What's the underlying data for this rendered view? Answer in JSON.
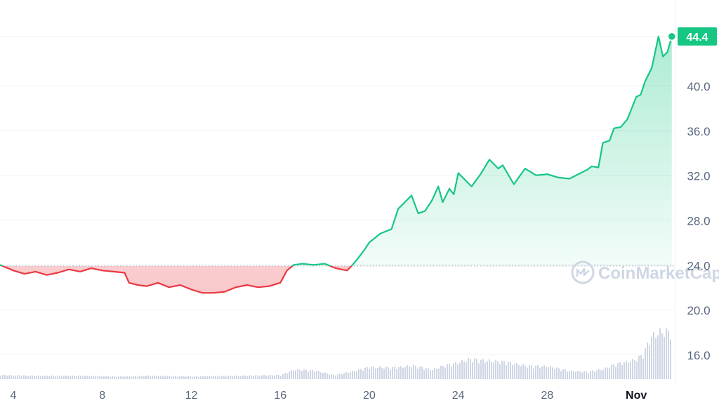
{
  "chart_data": {
    "type": "line",
    "title": "",
    "xlabel": "",
    "ylabel": "",
    "x_tick_labels": [
      "4",
      "8",
      "12",
      "16",
      "20",
      "24",
      "28",
      "Nov"
    ],
    "x_tick_days": [
      4,
      8,
      12,
      16,
      20,
      24,
      28,
      32
    ],
    "x_range": [
      3.4,
      33.7
    ],
    "ylim": [
      13.8,
      46.4
    ],
    "y_tick_labels": [
      "16.0",
      "20.0",
      "24.0",
      "28.0",
      "32.0",
      "36.0",
      "40.0"
    ],
    "y_ticks": [
      16,
      20,
      24,
      28,
      32,
      36,
      40
    ],
    "baseline": 23.9,
    "current_value": 44.4,
    "current_label": "44.4",
    "watermark": "CoinMarketCap",
    "grid": "horizontal",
    "colors": {
      "up": "#16c784",
      "down": "#ea3943",
      "up_fill": "#16c784",
      "down_fill": "#ea3943",
      "volume": "#cfd6e4",
      "grid": "#eff2f5",
      "axis_text": "#58667e",
      "price_tag_bg": "#16c784",
      "price_tag_text": "#ffffff",
      "watermark": "#cfd6e4"
    },
    "series": [
      {
        "x": [
          3.4,
          4.0,
          4.5,
          5.0,
          5.5,
          6.0,
          6.5,
          7.0,
          7.5,
          8.0,
          8.5,
          9.0,
          9.2,
          9.6,
          10.0,
          10.5,
          11.0,
          11.5,
          12.0,
          12.5,
          13.0,
          13.5,
          14.0,
          14.5,
          15.0,
          15.5,
          16.0,
          16.3,
          16.6,
          17.0,
          17.5,
          18.0,
          18.5,
          19.0,
          19.2,
          19.5,
          19.8,
          20.0,
          20.5,
          21.0,
          21.3,
          21.6,
          21.9,
          22.2,
          22.5,
          22.8,
          23.1,
          23.3,
          23.6,
          23.8,
          24.0,
          24.3,
          24.6,
          25.0,
          25.4,
          25.8,
          26.0,
          26.5,
          27.0,
          27.5,
          28.0,
          28.5,
          29.0,
          29.5,
          29.8,
          30.0,
          30.3,
          30.5,
          30.8,
          31.0,
          31.3,
          31.6,
          31.8,
          32.0,
          32.2,
          32.4,
          32.7,
          33.0,
          33.2,
          33.4,
          33.6
        ],
        "y": [
          24.0,
          23.5,
          23.2,
          23.4,
          23.1,
          23.3,
          23.6,
          23.4,
          23.7,
          23.5,
          23.4,
          23.3,
          22.4,
          22.2,
          22.1,
          22.4,
          22.0,
          22.2,
          21.8,
          21.5,
          21.5,
          21.6,
          22.0,
          22.2,
          22.0,
          22.1,
          22.4,
          23.5,
          24.0,
          24.1,
          24.0,
          24.1,
          23.7,
          23.5,
          23.9,
          24.6,
          25.4,
          26.0,
          26.8,
          27.2,
          29.0,
          29.6,
          30.2,
          28.6,
          28.8,
          29.7,
          31.0,
          29.6,
          30.8,
          30.3,
          32.2,
          31.6,
          31.0,
          32.1,
          33.4,
          32.6,
          32.9,
          31.2,
          32.6,
          32.0,
          32.1,
          31.8,
          31.7,
          32.2,
          32.5,
          32.8,
          32.7,
          34.9,
          35.1,
          36.2,
          36.3,
          37.0,
          38.0,
          39.0,
          39.2,
          40.4,
          41.6,
          44.4,
          42.6,
          43.0,
          44.4
        ]
      }
    ],
    "volume": {
      "x": [
        3.4,
        5.0,
        7.0,
        9.0,
        10.0,
        12.0,
        14.0,
        16.0,
        16.6,
        17.5,
        18.4,
        19.0,
        20.0,
        21.0,
        22.0,
        22.8,
        23.3,
        24.0,
        24.5,
        25.0,
        26.0,
        27.0,
        28.0,
        29.0,
        29.8,
        30.5,
        31.0,
        31.6,
        32.0,
        32.3,
        32.6,
        33.0,
        33.6
      ],
      "level": [
        0.06,
        0.05,
        0.05,
        0.04,
        0.05,
        0.04,
        0.05,
        0.06,
        0.14,
        0.13,
        0.06,
        0.1,
        0.18,
        0.17,
        0.2,
        0.14,
        0.2,
        0.25,
        0.3,
        0.28,
        0.26,
        0.2,
        0.19,
        0.12,
        0.11,
        0.15,
        0.22,
        0.26,
        0.3,
        0.38,
        0.62,
        0.7,
        0.72
      ]
    }
  }
}
